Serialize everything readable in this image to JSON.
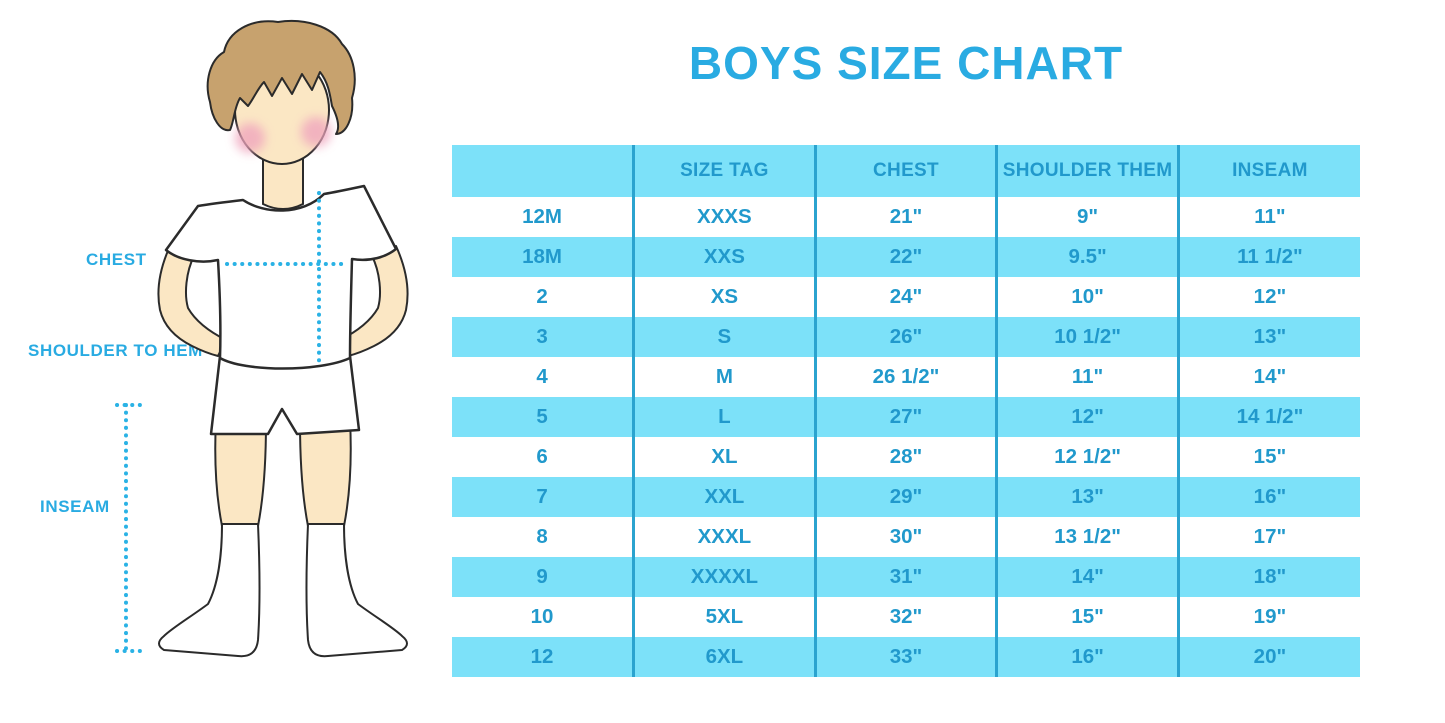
{
  "title": "BOYS SIZE CHART",
  "colors": {
    "background": "#FFFFFF",
    "accent_blue": "#29ABE2",
    "table_text_blue": "#2199CC",
    "band_cyan": "#7CE1F9",
    "divider_blue": "#2BA3CF",
    "dotted_line_cyan": "#2AB2E5",
    "skin": "#FBE7C4",
    "hair_brown": "#C7A26E",
    "blush_pink": "#F0A6BE",
    "outline_dark": "#2B2B2B"
  },
  "figure": {
    "labels": {
      "chest": "CHEST",
      "shoulder_to_hem": "SHOULDER TO HEM",
      "inseam": "INSEAM"
    }
  },
  "chart_data": {
    "type": "table",
    "title": "BOYS SIZE CHART",
    "columns": [
      "",
      "SIZE TAG",
      "CHEST",
      "SHOULDER THEM",
      "INSEAM"
    ],
    "rows": [
      [
        "12M",
        "XXXS",
        "21\"",
        "9\"",
        "11\""
      ],
      [
        "18M",
        "XXS",
        "22\"",
        "9.5\"",
        "11 1/2\""
      ],
      [
        "2",
        "XS",
        "24\"",
        "10\"",
        "12\""
      ],
      [
        "3",
        "S",
        "26\"",
        "10 1/2\"",
        "13\""
      ],
      [
        "4",
        "M",
        "26 1/2\"",
        "11\"",
        "14\""
      ],
      [
        "5",
        "L",
        "27\"",
        "12\"",
        "14 1/2\""
      ],
      [
        "6",
        "XL",
        "28\"",
        "12 1/2\"",
        "15\""
      ],
      [
        "7",
        "XXL",
        "29\"",
        "13\"",
        "16\""
      ],
      [
        "8",
        "XXXL",
        "30\"",
        "13 1/2\"",
        "17\""
      ],
      [
        "9",
        "XXXXL",
        "31\"",
        "14\"",
        "18\""
      ],
      [
        "10",
        "5XL",
        "32\"",
        "15\"",
        "19\""
      ],
      [
        "12",
        "6XL",
        "33\"",
        "16\"",
        "20\""
      ]
    ],
    "layout": {
      "header_background": "cyan band",
      "row_striping": "white / cyan alternating",
      "columns_equal_width": true
    },
    "measurement_guides": [
      "CHEST",
      "SHOULDER TO HEM",
      "INSEAM"
    ]
  }
}
